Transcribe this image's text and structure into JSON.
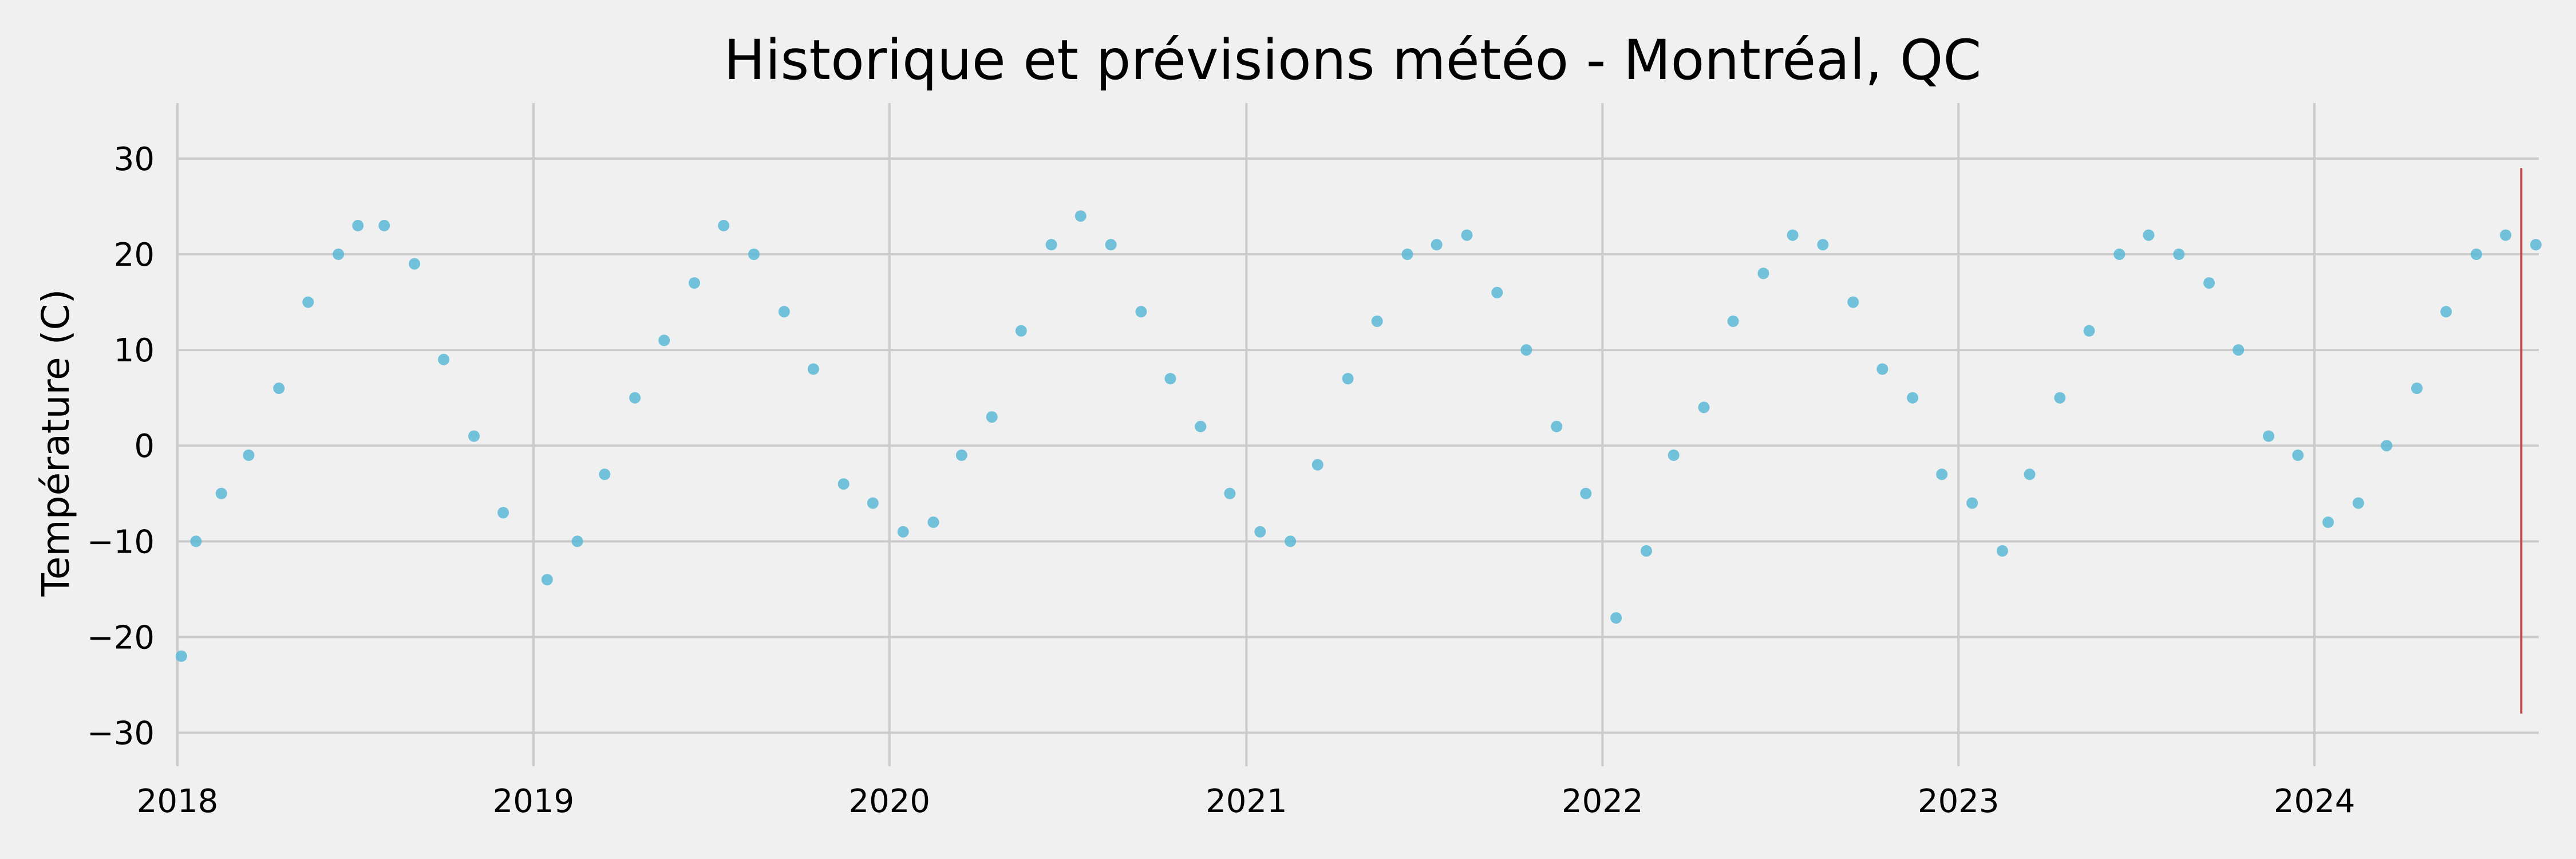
{
  "chart_data": {
    "type": "scatter",
    "title": "Historique et prévisions météo - Montréal, QC",
    "xlabel": "",
    "ylabel": "Température (C)",
    "x_range": [
      "2018-01-01",
      "2024-08-18"
    ],
    "ylim": [
      -33.5,
      35.8
    ],
    "x_ticks": [
      {
        "date": "2018-01-01",
        "label": "2018"
      },
      {
        "date": "2019-01-01",
        "label": "2019"
      },
      {
        "date": "2020-01-01",
        "label": "2020"
      },
      {
        "date": "2021-01-01",
        "label": "2021"
      },
      {
        "date": "2022-01-01",
        "label": "2022"
      },
      {
        "date": "2023-01-01",
        "label": "2023"
      },
      {
        "date": "2024-01-01",
        "label": "2024"
      }
    ],
    "y_ticks": [
      {
        "value": 30,
        "label": "30"
      },
      {
        "value": 20,
        "label": "20"
      },
      {
        "value": 10,
        "label": "10"
      },
      {
        "value": 0,
        "label": "0"
      },
      {
        "value": -10,
        "label": "−10"
      },
      {
        "value": -20,
        "label": "−20"
      },
      {
        "value": -30,
        "label": "−30"
      }
    ],
    "grid": true,
    "series": [
      {
        "color": "#5bb8d6",
        "points": [
          {
            "x": "2018-01-05",
            "y": -22
          },
          {
            "x": "2018-01-20",
            "y": -10
          },
          {
            "x": "2018-02-15",
            "y": -5
          },
          {
            "x": "2018-03-15",
            "y": -1
          },
          {
            "x": "2018-04-15",
            "y": 6
          },
          {
            "x": "2018-05-15",
            "y": 15
          },
          {
            "x": "2018-06-15",
            "y": 20
          },
          {
            "x": "2018-07-05",
            "y": 23
          },
          {
            "x": "2018-08-01",
            "y": 23
          },
          {
            "x": "2018-09-01",
            "y": 19
          },
          {
            "x": "2018-10-01",
            "y": 9
          },
          {
            "x": "2018-11-01",
            "y": 1
          },
          {
            "x": "2018-12-01",
            "y": -7
          },
          {
            "x": "2019-01-15",
            "y": -14
          },
          {
            "x": "2019-02-15",
            "y": -10
          },
          {
            "x": "2019-03-15",
            "y": -3
          },
          {
            "x": "2019-04-15",
            "y": 5
          },
          {
            "x": "2019-05-15",
            "y": 11
          },
          {
            "x": "2019-06-15",
            "y": 17
          },
          {
            "x": "2019-07-15",
            "y": 23
          },
          {
            "x": "2019-08-15",
            "y": 20
          },
          {
            "x": "2019-09-15",
            "y": 14
          },
          {
            "x": "2019-10-15",
            "y": 8
          },
          {
            "x": "2019-11-15",
            "y": -4
          },
          {
            "x": "2019-12-15",
            "y": -6
          },
          {
            "x": "2020-01-15",
            "y": -9
          },
          {
            "x": "2020-02-15",
            "y": -8
          },
          {
            "x": "2020-03-15",
            "y": -1
          },
          {
            "x": "2020-04-15",
            "y": 3
          },
          {
            "x": "2020-05-15",
            "y": 12
          },
          {
            "x": "2020-06-15",
            "y": 21
          },
          {
            "x": "2020-07-15",
            "y": 24
          },
          {
            "x": "2020-08-15",
            "y": 21
          },
          {
            "x": "2020-09-15",
            "y": 14
          },
          {
            "x": "2020-10-15",
            "y": 7
          },
          {
            "x": "2020-11-15",
            "y": 2
          },
          {
            "x": "2020-12-15",
            "y": -5
          },
          {
            "x": "2021-01-15",
            "y": -9
          },
          {
            "x": "2021-02-15",
            "y": -10
          },
          {
            "x": "2021-03-15",
            "y": -2
          },
          {
            "x": "2021-04-15",
            "y": 7
          },
          {
            "x": "2021-05-15",
            "y": 13
          },
          {
            "x": "2021-06-15",
            "y": 20
          },
          {
            "x": "2021-07-15",
            "y": 21
          },
          {
            "x": "2021-08-15",
            "y": 22
          },
          {
            "x": "2021-09-15",
            "y": 16
          },
          {
            "x": "2021-10-15",
            "y": 10
          },
          {
            "x": "2021-11-15",
            "y": 2
          },
          {
            "x": "2021-12-15",
            "y": -5
          },
          {
            "x": "2022-01-15",
            "y": -18
          },
          {
            "x": "2022-02-15",
            "y": -11
          },
          {
            "x": "2022-03-15",
            "y": -1
          },
          {
            "x": "2022-04-15",
            "y": 4
          },
          {
            "x": "2022-05-15",
            "y": 13
          },
          {
            "x": "2022-06-15",
            "y": 18
          },
          {
            "x": "2022-07-15",
            "y": 22
          },
          {
            "x": "2022-08-15",
            "y": 21
          },
          {
            "x": "2022-09-15",
            "y": 15
          },
          {
            "x": "2022-10-15",
            "y": 8
          },
          {
            "x": "2022-11-15",
            "y": 5
          },
          {
            "x": "2022-12-15",
            "y": -3
          },
          {
            "x": "2023-01-15",
            "y": -6
          },
          {
            "x": "2023-02-15",
            "y": -11
          },
          {
            "x": "2023-03-15",
            "y": -3
          },
          {
            "x": "2023-04-15",
            "y": 5
          },
          {
            "x": "2023-05-15",
            "y": 12
          },
          {
            "x": "2023-06-15",
            "y": 20
          },
          {
            "x": "2023-07-15",
            "y": 22
          },
          {
            "x": "2023-08-15",
            "y": 20
          },
          {
            "x": "2023-09-15",
            "y": 17
          },
          {
            "x": "2023-10-15",
            "y": 10
          },
          {
            "x": "2023-11-15",
            "y": 1
          },
          {
            "x": "2023-12-15",
            "y": -1
          },
          {
            "x": "2024-01-15",
            "y": -8
          },
          {
            "x": "2024-02-15",
            "y": -6
          },
          {
            "x": "2024-03-15",
            "y": 0
          },
          {
            "x": "2024-04-15",
            "y": 6
          },
          {
            "x": "2024-05-15",
            "y": 14
          },
          {
            "x": "2024-06-15",
            "y": 20
          },
          {
            "x": "2024-07-15",
            "y": 22
          },
          {
            "x": "2024-08-15",
            "y": 21
          }
        ]
      }
    ],
    "annotations": [
      {
        "type": "vline",
        "x": "2024-07-31",
        "y_range": [
          -28,
          29
        ],
        "color": "#c0504d"
      }
    ]
  }
}
